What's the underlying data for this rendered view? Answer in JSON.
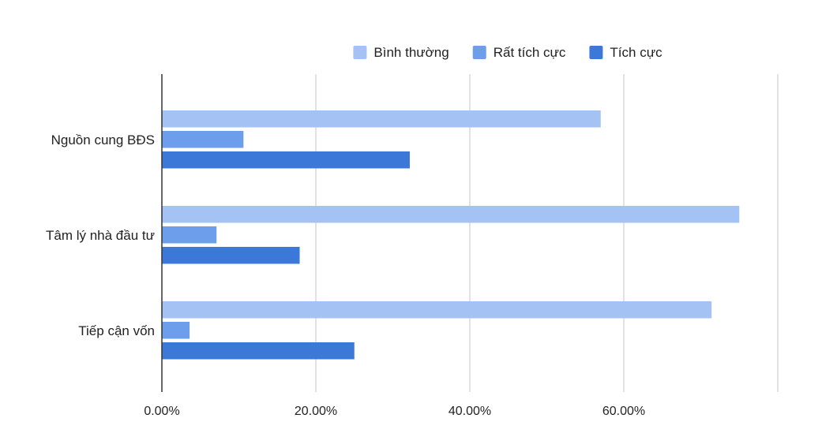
{
  "chart_data": {
    "type": "bar",
    "orientation": "horizontal",
    "title": "",
    "xlabel": "",
    "ylabel": "",
    "categories": [
      "Nguồn cung BĐS",
      "Tâm lý nhà đầu tư",
      "Tiếp cận vốn"
    ],
    "series": [
      {
        "name": "Bình thường",
        "color": "#a4c2f4",
        "values": [
          57.0,
          75.0,
          71.4
        ]
      },
      {
        "name": "Rất tích cực",
        "color": "#6d9eeb",
        "values": [
          10.6,
          7.1,
          3.6
        ]
      },
      {
        "name": "Tích cực",
        "color": "#3c78d8",
        "values": [
          32.2,
          17.9,
          25.0
        ]
      }
    ],
    "xlim": [
      0,
      80
    ],
    "x_ticks": [
      0,
      20,
      40,
      60,
      80
    ],
    "x_tick_labels": [
      "0.00%",
      "20.00%",
      "40.00%",
      "60.00%",
      ""
    ],
    "grid": true,
    "legend_position": "top"
  }
}
